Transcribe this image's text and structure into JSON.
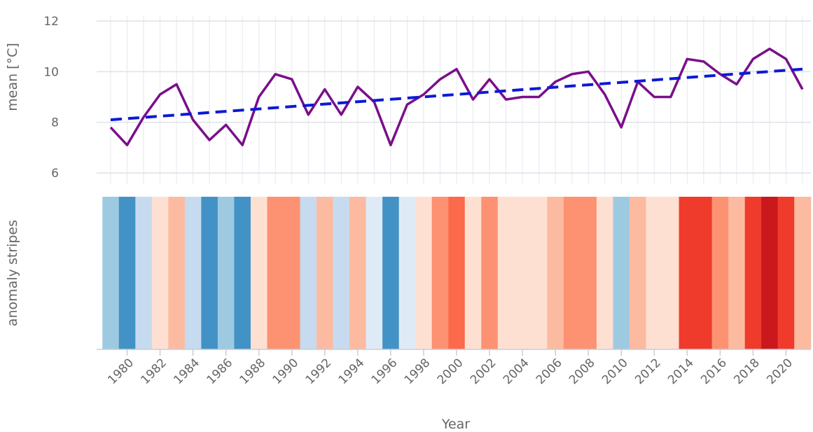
{
  "chart_data": {
    "type": "line",
    "xlabel": "Year",
    "x": [
      1979,
      1980,
      1981,
      1982,
      1983,
      1984,
      1985,
      1986,
      1987,
      1988,
      1989,
      1990,
      1991,
      1992,
      1993,
      1994,
      1995,
      1996,
      1997,
      1998,
      1999,
      2000,
      2001,
      2002,
      2003,
      2004,
      2005,
      2006,
      2007,
      2008,
      2009,
      2010,
      2011,
      2012,
      2013,
      2014,
      2015,
      2016,
      2017,
      2018,
      2019,
      2020,
      2021
    ],
    "x_tick_labels": [
      "1980",
      "1982",
      "1984",
      "1986",
      "1988",
      "1990",
      "1992",
      "1994",
      "1996",
      "1998",
      "2000",
      "2002",
      "2004",
      "2006",
      "2008",
      "2010",
      "2012",
      "2014",
      "2016",
      "2018",
      "2020"
    ],
    "top_panel": {
      "ylabel": "mean [°C]",
      "ylim": [
        5.9,
        12
      ],
      "y_tick_labels": [
        "6",
        "8",
        "10",
        "12"
      ],
      "grid": true,
      "series": [
        {
          "values": [
            7.8,
            7.1,
            8.2,
            9.1,
            9.5,
            8.1,
            7.3,
            7.9,
            7.1,
            9.0,
            9.9,
            9.7,
            8.3,
            9.3,
            8.3,
            9.4,
            8.8,
            7.1,
            8.7,
            9.1,
            9.7,
            10.1,
            8.9,
            9.7,
            8.9,
            9.0,
            9.0,
            9.6,
            9.9,
            10.0,
            9.1,
            7.8,
            9.6,
            9.0,
            9.0,
            10.5,
            10.4,
            9.9,
            9.5,
            10.5,
            10.9,
            10.5,
            9.3
          ],
          "color": "#7a0f8a",
          "style": "solid"
        },
        {
          "values": [
            8.1,
            10.1
          ],
          "x": [
            1979,
            2021
          ],
          "color": "#0b1ad6",
          "style": "dashed"
        }
      ]
    },
    "bottom_panel": {
      "ylabel": "anomaly stripes",
      "type": "heatmap",
      "stripe_colors": [
        "#9ecae1",
        "#4292c6",
        "#c6dbef",
        "#fee0d2",
        "#fcbba1",
        "#c6dbef",
        "#4292c6",
        "#9ecae1",
        "#4292c6",
        "#fee0d2",
        "#fc9272",
        "#fc9272",
        "#c6dbef",
        "#fcbba1",
        "#c6dbef",
        "#fcbba1",
        "#deebf7",
        "#4292c6",
        "#deebf7",
        "#fee0d2",
        "#fc9272",
        "#fb6a4a",
        "#fee0d2",
        "#fc9272",
        "#fee0d2",
        "#fee0d2",
        "#fee0d2",
        "#fcbba1",
        "#fc9272",
        "#fc9272",
        "#fee0d2",
        "#9ecae1",
        "#fcbba1",
        "#fee0d2",
        "#fee0d2",
        "#ef3b2c",
        "#ef3b2c",
        "#fc9272",
        "#fcbba1",
        "#ef3b2c",
        "#cb181d",
        "#ef3b2c",
        "#fcbba1"
      ]
    }
  }
}
